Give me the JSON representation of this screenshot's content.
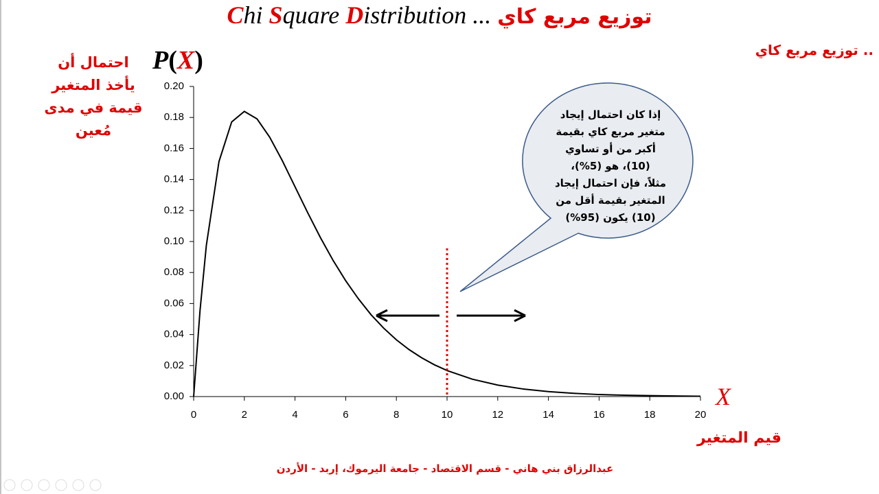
{
  "chart_data": {
    "type": "line",
    "title": [
      "C",
      "hi ",
      "S",
      "quare ",
      "D",
      "istribution ... ",
      "توزيع مربع كاي"
    ],
    "corner_note": "توزيع مربع كاي ..",
    "y_label": "P(X)",
    "y_label_parts": [
      "P",
      "(",
      "X",
      ")"
    ],
    "x_label": "X",
    "y_description": [
      "احتمال أن",
      "يأخذ المتغير",
      "قيمة في مدى",
      "مُعين"
    ],
    "x_description": "قيم المتغير",
    "callout": [
      "إذا كان احتمال إيجاد",
      "متغير مربع كاي بقيمة",
      "أكبر من أو تساوي",
      "(10)، هو (5%)،",
      "مثلاً، فإن احتمال إيجاد",
      "المتغير بقيمة أقل من",
      "(10) يكون (95%)"
    ],
    "footer": "عبدالرزاق بني هاني  - قسم الاقتصاد - جامعة اليرموك، إربد - الأردن",
    "x": [
      0,
      0.25,
      0.5,
      1,
      1.5,
      2,
      2.5,
      3,
      3.5,
      4,
      4.5,
      5,
      5.5,
      6,
      6.5,
      7,
      7.5,
      8,
      8.5,
      9,
      9.5,
      10,
      11,
      12,
      13,
      14,
      15,
      16,
      17,
      18,
      19,
      20
    ],
    "values": [
      0,
      0.0552,
      0.0974,
      0.1516,
      0.1771,
      0.1839,
      0.1791,
      0.1673,
      0.1521,
      0.1353,
      0.1186,
      0.1026,
      0.0879,
      0.0747,
      0.0631,
      0.0528,
      0.0441,
      0.0366,
      0.0303,
      0.025,
      0.0205,
      0.0168,
      0.0112,
      0.0074,
      0.0049,
      0.0032,
      0.0021,
      0.0013,
      0.0009,
      0.0006,
      0.0004,
      0.0002
    ],
    "color": "#000000",
    "marker_x": 10,
    "marker_color": "#e00000",
    "xlim": [
      0,
      20
    ],
    "xticks": [
      0,
      2,
      4,
      6,
      8,
      10,
      12,
      14,
      16,
      18,
      20
    ],
    "ylim": [
      0,
      0.2
    ],
    "yticks": [
      {
        "value": 0,
        "label": "0.00"
      },
      {
        "value": 0.02,
        "label": "0.02"
      },
      {
        "value": 0.04,
        "label": "0.04"
      },
      {
        "value": 0.06,
        "label": "0.06"
      },
      {
        "value": 0.08,
        "label": "0.08"
      },
      {
        "value": 0.1,
        "label": "0.10"
      },
      {
        "value": 0.12,
        "label": "0.12"
      },
      {
        "value": 0.14,
        "label": "0.14"
      },
      {
        "value": 0.16,
        "label": "0.16"
      },
      {
        "value": 0.18,
        "label": "0.18"
      },
      {
        "value": 0.2,
        "label": "0.20"
      }
    ]
  }
}
